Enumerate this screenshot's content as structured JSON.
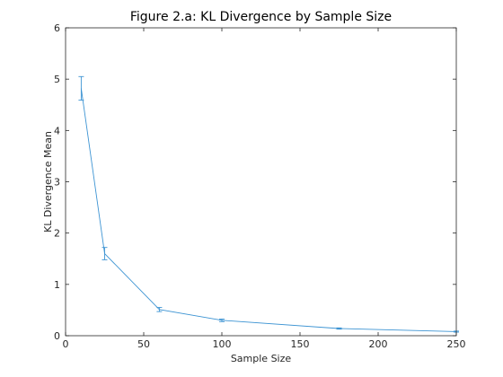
{
  "chart_data": {
    "type": "line",
    "title": "Figure 2.a: KL Divergence by Sample Size",
    "xlabel": "Sample Size",
    "ylabel": "KL Divergence Mean",
    "xlim": [
      0,
      250
    ],
    "ylim": [
      0,
      6
    ],
    "xticks": [
      0,
      50,
      100,
      150,
      200,
      250
    ],
    "yticks": [
      0,
      1,
      2,
      3,
      4,
      5,
      6
    ],
    "grid": false,
    "series": [
      {
        "x": [
          10,
          25,
          60,
          100,
          175,
          250
        ],
        "y": [
          4.82,
          1.6,
          0.51,
          0.3,
          0.14,
          0.08
        ],
        "error": [
          0.23,
          0.12,
          0.04,
          0.025,
          0.012,
          0.01
        ],
        "color": "#3d94d3"
      }
    ]
  }
}
